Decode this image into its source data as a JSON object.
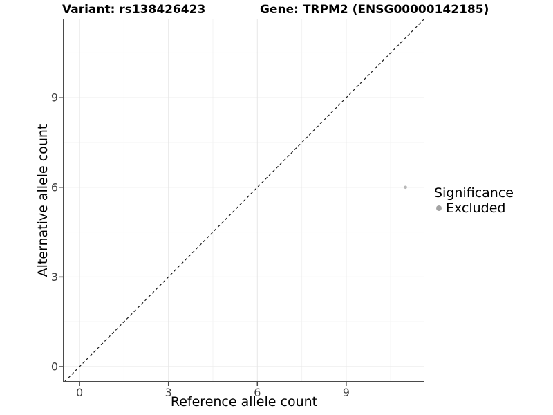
{
  "title": {
    "variant": "Variant: rs138426423",
    "gene": "Gene: TRPM2 (ENSG00000142185)"
  },
  "chart_data": {
    "type": "scatter",
    "title": "Variant: rs138426423 — Gene: TRPM2 (ENSG00000142185)",
    "xlabel": "Reference allele count",
    "ylabel": "Alternative allele count",
    "xlim": [
      -0.54,
      11.64
    ],
    "ylim": [
      -0.51,
      11.62
    ],
    "xticks": [
      0,
      3,
      6,
      9
    ],
    "yticks": [
      0,
      3,
      6,
      9
    ],
    "minor_xticks": [
      1.5,
      4.5,
      7.5,
      10.5
    ],
    "minor_yticks": [
      1.5,
      4.5,
      7.5,
      10.5
    ],
    "grid": true,
    "points": [
      {
        "x": 11,
        "y": 6,
        "significance": "Excluded"
      }
    ],
    "identity_line": {
      "slope": 1,
      "intercept": 0,
      "style": "dashed",
      "color": "#1a1a1a"
    },
    "legend": {
      "title": "Significance",
      "position": "right",
      "entries": [
        {
          "label": "Excluded",
          "color": "#a4a4a4"
        }
      ]
    },
    "colors": {
      "point": "#b8b8b8",
      "grid_major": "#e6e6e6",
      "grid_minor": "#f3f3f3",
      "axis_line": "#4a4a4a",
      "tick": "#4a4a4a",
      "tick_label": "#404040",
      "background": "#ffffff"
    }
  }
}
